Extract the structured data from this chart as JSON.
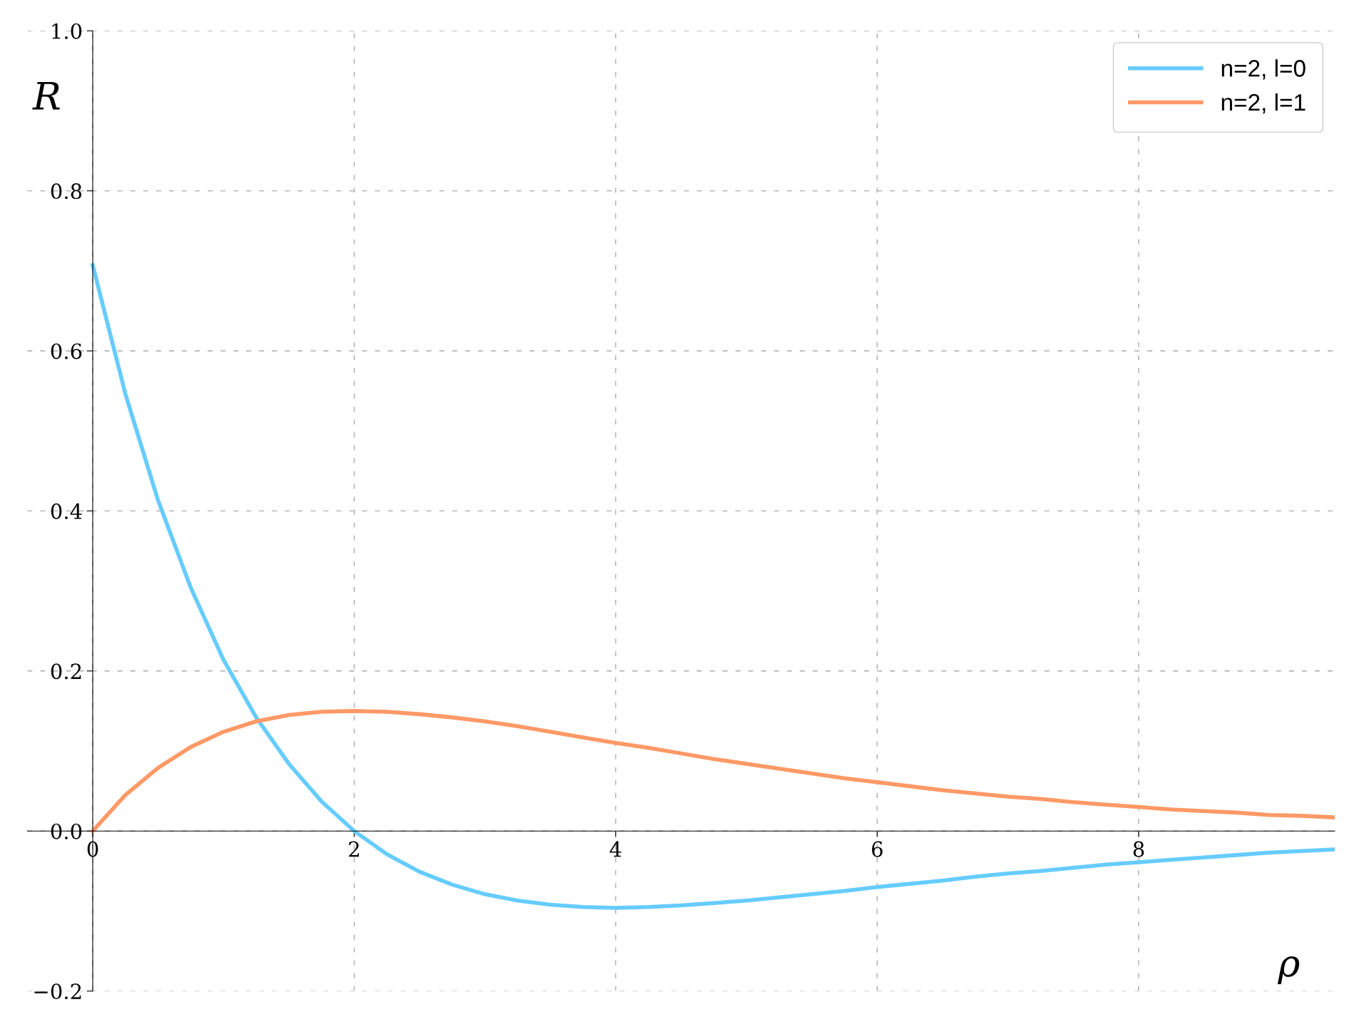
{
  "chart_data": {
    "type": "line",
    "xlabel": "ρ",
    "ylabel": "R",
    "xlim": [
      -0.5,
      9.5
    ],
    "ylim": [
      -0.2,
      1.0
    ],
    "xticks": [
      0,
      2,
      4,
      6,
      8
    ],
    "yticks": [
      {
        "value": -0.2,
        "label": "−0.2"
      },
      {
        "value": 0,
        "label": "0.0"
      },
      0.2,
      0.4,
      0.6,
      0.8,
      {
        "value": 1,
        "label": "1.0"
      }
    ],
    "grid": true,
    "legend": "top right",
    "x": [
      0,
      0.25,
      0.5,
      0.75,
      1,
      1.25,
      1.5,
      1.75,
      2,
      2.25,
      2.5,
      2.75,
      3,
      3.25,
      3.5,
      3.75,
      4,
      4.25,
      4.5,
      4.75,
      5,
      5.25,
      5.5,
      5.75,
      6,
      6.25,
      6.5,
      6.75,
      7,
      7.25,
      7.5,
      7.75,
      8,
      8.25,
      8.5,
      8.75,
      9,
      9.25,
      9.5
    ],
    "series": [
      {
        "name": "n=2, l=0",
        "color": "#66ccff",
        "values": [
          0.707,
          0.546,
          0.413,
          0.304,
          0.214,
          0.142,
          0.084,
          0.037,
          0,
          -0.029,
          -0.051,
          -0.067,
          -0.079,
          -0.087,
          -0.092,
          -0.095,
          -0.096,
          -0.095,
          -0.093,
          -0.09,
          -0.087,
          -0.083,
          -0.079,
          -0.075,
          -0.07,
          -0.066,
          -0.062,
          -0.057,
          -0.053,
          -0.05,
          -0.046,
          -0.042,
          -0.039,
          -0.036,
          -0.033,
          -0.03,
          -0.027,
          -0.025,
          -0.023
        ]
      },
      {
        "name": "n=2, l=1",
        "color": "#ff9966",
        "values": [
          0,
          0.045,
          0.079,
          0.105,
          0.124,
          0.137,
          0.145,
          0.149,
          0.15,
          0.149,
          0.146,
          0.142,
          0.137,
          0.131,
          0.124,
          0.117,
          0.11,
          0.104,
          0.097,
          0.09,
          0.084,
          0.078,
          0.072,
          0.066,
          0.061,
          0.056,
          0.051,
          0.047,
          0.043,
          0.04,
          0.036,
          0.033,
          0.03,
          0.027,
          0.025,
          0.023,
          0.02,
          0.019,
          0.017
        ]
      }
    ]
  }
}
